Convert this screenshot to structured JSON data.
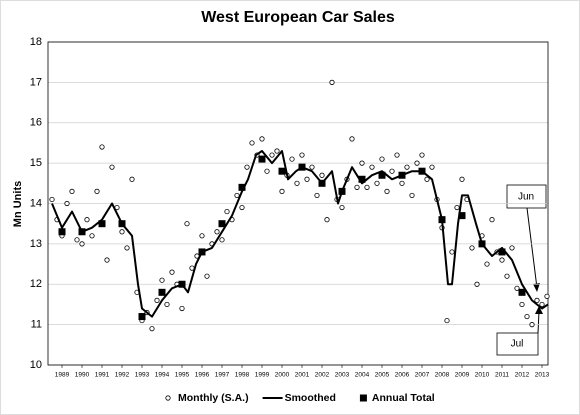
{
  "chart_data": {
    "type": "line",
    "title": "West European Car Sales",
    "y_label": "Mn Units",
    "xlim": [
      1988.3,
      2013.3
    ],
    "xticks": [
      1989,
      1990,
      1991,
      1992,
      1993,
      1994,
      1995,
      1996,
      1997,
      1998,
      1999,
      2000,
      2001,
      2002,
      2003,
      2004,
      2005,
      2006,
      2007,
      2008,
      2009,
      2010,
      2011,
      2012,
      2013
    ],
    "ylim": [
      10,
      18
    ],
    "yticks": [
      10,
      11,
      12,
      13,
      14,
      15,
      16,
      17,
      18
    ],
    "grid": true,
    "legend": "bottom",
    "annotations": [
      {
        "text": "Jun"
      },
      {
        "text": "Jul"
      }
    ],
    "series": [
      {
        "name": "Monthly (S.A.)",
        "type": "scatter",
        "marker": "circle",
        "color": "#000000",
        "x": [
          1988.5,
          1988.75,
          1989,
          1989.25,
          1989.5,
          1989.75,
          1990,
          1990.25,
          1990.5,
          1990.75,
          1991,
          1991.25,
          1991.5,
          1991.75,
          1992,
          1992.25,
          1992.5,
          1992.75,
          1993,
          1993.25,
          1993.5,
          1993.75,
          1994,
          1994.25,
          1994.5,
          1994.75,
          1995,
          1995.25,
          1995.5,
          1995.75,
          1996,
          1996.25,
          1996.5,
          1996.75,
          1997,
          1997.25,
          1997.5,
          1997.75,
          1998,
          1998.25,
          1998.5,
          1998.75,
          1999,
          1999.25,
          1999.5,
          1999.75,
          2000,
          2000.25,
          2000.5,
          2000.75,
          2001,
          2001.25,
          2001.5,
          2001.75,
          2002,
          2002.25,
          2002.5,
          2002.75,
          2003,
          2003.25,
          2003.5,
          2003.75,
          2004,
          2004.25,
          2004.5,
          2004.75,
          2005,
          2005.25,
          2005.5,
          2005.75,
          2006,
          2006.25,
          2006.5,
          2006.75,
          2007,
          2007.25,
          2007.5,
          2007.75,
          2008,
          2008.25,
          2008.5,
          2008.75,
          2009,
          2009.25,
          2009.5,
          2009.75,
          2010,
          2010.25,
          2010.5,
          2010.75,
          2011,
          2011.25,
          2011.5,
          2011.75,
          2012,
          2012.25,
          2012.5,
          2012.75,
          2013,
          2013.25
        ],
        "values": [
          14.1,
          13.6,
          13.2,
          14.0,
          14.3,
          13.1,
          13.0,
          13.6,
          13.2,
          14.3,
          15.4,
          12.6,
          14.9,
          13.9,
          13.3,
          12.9,
          14.6,
          11.8,
          11.1,
          11.3,
          10.9,
          11.6,
          12.1,
          11.5,
          12.3,
          12.0,
          11.4,
          13.5,
          12.4,
          12.7,
          13.2,
          12.2,
          13.0,
          13.3,
          13.1,
          13.8,
          13.6,
          14.2,
          13.9,
          14.9,
          15.5,
          15.2,
          15.6,
          14.8,
          15.2,
          15.3,
          14.3,
          14.7,
          15.1,
          14.5,
          15.2,
          14.6,
          14.9,
          14.2,
          14.7,
          13.6,
          17.0,
          14.1,
          13.9,
          14.6,
          15.6,
          14.4,
          15.0,
          14.4,
          14.9,
          14.5,
          15.1,
          14.3,
          14.8,
          15.2,
          14.5,
          14.9,
          14.2,
          15.0,
          15.2,
          14.6,
          14.9,
          14.1,
          13.4,
          11.1,
          12.8,
          13.9,
          14.6,
          14.1,
          12.9,
          12.0,
          13.2,
          12.5,
          13.6,
          12.8,
          12.6,
          12.2,
          12.9,
          11.9,
          11.5,
          11.2,
          11.0,
          11.6,
          11.5,
          11.7
        ]
      },
      {
        "name": "Smoothed",
        "type": "line",
        "color": "#000000",
        "x": [
          1988.5,
          1989,
          1989.5,
          1990,
          1990.5,
          1991,
          1991.5,
          1992,
          1992.5,
          1992.8,
          1993,
          1993.5,
          1994,
          1994.5,
          1995,
          1995.3,
          1995.7,
          1996,
          1996.5,
          1997,
          1997.5,
          1998,
          1998.3,
          1998.7,
          1999,
          1999.5,
          2000,
          2000.3,
          2000.7,
          2001,
          2001.5,
          2002,
          2002.5,
          2002.8,
          2003,
          2003.5,
          2004,
          2004.5,
          2005,
          2005.5,
          2006,
          2006.5,
          2007,
          2007.5,
          2008,
          2008.3,
          2008.5,
          2008.8,
          2009,
          2009.3,
          2009.7,
          2010,
          2010.5,
          2011,
          2011.5,
          2012,
          2012.5,
          2013,
          2013.3
        ],
        "values": [
          14.0,
          13.4,
          13.8,
          13.3,
          13.4,
          13.6,
          14.0,
          13.5,
          13.2,
          12.0,
          11.4,
          11.2,
          11.6,
          11.9,
          12.0,
          11.8,
          12.5,
          12.8,
          12.9,
          13.3,
          13.7,
          14.3,
          14.6,
          15.2,
          15.3,
          15.0,
          15.3,
          14.6,
          14.8,
          14.9,
          14.8,
          14.5,
          14.8,
          14.0,
          14.3,
          14.9,
          14.5,
          14.7,
          14.8,
          14.6,
          14.7,
          14.8,
          14.8,
          14.6,
          13.6,
          12.0,
          12.0,
          13.5,
          14.2,
          14.2,
          13.5,
          13.0,
          12.7,
          12.9,
          12.6,
          12.0,
          11.6,
          11.4,
          11.5
        ]
      },
      {
        "name": "Annual Total",
        "type": "scatter",
        "marker": "square",
        "color": "#000000",
        "x": [
          1989,
          1990,
          1991,
          1992,
          1993,
          1994,
          1995,
          1996,
          1997,
          1998,
          1999,
          2000,
          2001,
          2002,
          2003,
          2004,
          2005,
          2006,
          2007,
          2008,
          2009,
          2010,
          2011,
          2012
        ],
        "values": [
          13.3,
          13.3,
          13.5,
          13.5,
          11.2,
          11.8,
          12.0,
          12.8,
          13.5,
          14.4,
          15.1,
          14.8,
          14.9,
          14.5,
          14.3,
          14.6,
          14.7,
          14.7,
          14.8,
          13.6,
          13.7,
          13.0,
          12.8,
          11.8
        ]
      }
    ]
  }
}
